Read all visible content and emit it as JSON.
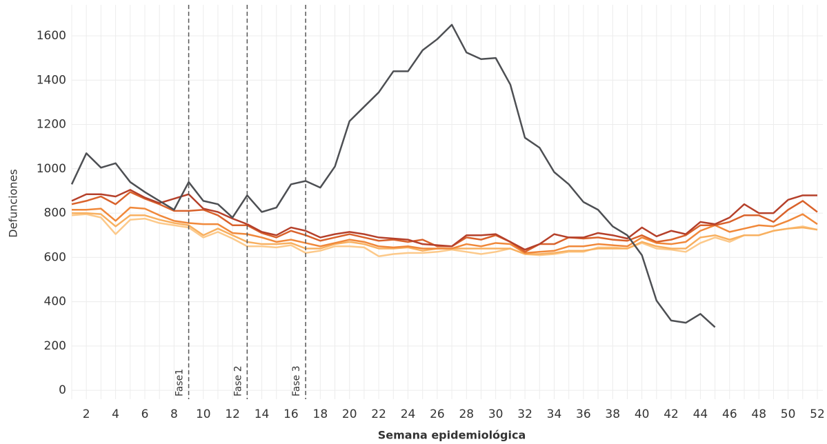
{
  "chart_data": {
    "type": "line",
    "x_label": "Semana epidemiológica",
    "y_label": "Defunciones",
    "x": [
      1,
      2,
      3,
      4,
      5,
      6,
      7,
      8,
      9,
      10,
      11,
      12,
      13,
      14,
      15,
      16,
      17,
      18,
      19,
      20,
      21,
      22,
      23,
      24,
      25,
      26,
      27,
      28,
      29,
      30,
      31,
      32,
      33,
      34,
      35,
      36,
      37,
      38,
      39,
      40,
      41,
      42,
      43,
      44,
      45,
      46,
      47,
      48,
      49,
      50,
      51,
      52
    ],
    "xlim": [
      1,
      52
    ],
    "xticks": [
      2,
      4,
      6,
      8,
      10,
      12,
      14,
      16,
      18,
      20,
      22,
      24,
      26,
      28,
      30,
      32,
      34,
      36,
      38,
      40,
      42,
      44,
      46,
      48,
      50,
      52
    ],
    "ylim": [
      -40,
      1740
    ],
    "yticks": [
      0,
      200,
      400,
      600,
      800,
      1000,
      1200,
      1400,
      1600
    ],
    "grid": true,
    "series": [
      {
        "color": "#fcc98a",
        "values": [
          790,
          795,
          780,
          705,
          770,
          775,
          755,
          745,
          735,
          690,
          715,
          685,
          650,
          650,
          645,
          655,
          620,
          630,
          650,
          650,
          645,
          605,
          615,
          620,
          620,
          625,
          635,
          625,
          615,
          625,
          640,
          615,
          610,
          615,
          625,
          625,
          645,
          645,
          640,
          665,
          640,
          635,
          625,
          665,
          690,
          670,
          700,
          700,
          720,
          730,
          740,
          725
        ]
      },
      {
        "color": "#f8b060",
        "values": [
          800,
          800,
          795,
          740,
          790,
          790,
          770,
          755,
          745,
          700,
          730,
          700,
          670,
          660,
          660,
          665,
          640,
          640,
          660,
          670,
          660,
          640,
          640,
          645,
          630,
          640,
          640,
          640,
          640,
          640,
          640,
          615,
          615,
          620,
          630,
          630,
          640,
          640,
          640,
          670,
          650,
          640,
          640,
          690,
          700,
          680,
          700,
          700,
          720,
          730,
          735,
          725
        ]
      },
      {
        "color": "#f0883a",
        "values": [
          815,
          815,
          820,
          765,
          825,
          820,
          790,
          765,
          755,
          750,
          750,
          710,
          705,
          690,
          670,
          680,
          665,
          650,
          665,
          680,
          670,
          650,
          645,
          650,
          640,
          640,
          640,
          660,
          650,
          665,
          660,
          620,
          625,
          630,
          650,
          650,
          660,
          655,
          650,
          690,
          665,
          660,
          670,
          720,
          745,
          715,
          730,
          745,
          740,
          765,
          795,
          750
        ]
      },
      {
        "color": "#d9622b",
        "values": [
          840,
          855,
          875,
          840,
          895,
          865,
          840,
          810,
          810,
          815,
          790,
          745,
          745,
          710,
          690,
          720,
          700,
          675,
          690,
          705,
          690,
          675,
          680,
          670,
          680,
          650,
          650,
          690,
          680,
          700,
          670,
          625,
          660,
          660,
          690,
          685,
          690,
          680,
          675,
          700,
          670,
          680,
          700,
          745,
          745,
          760,
          790,
          790,
          760,
          815,
          855,
          805
        ]
      },
      {
        "color": "#b5402a",
        "values": [
          855,
          885,
          885,
          875,
          905,
          870,
          845,
          865,
          885,
          820,
          805,
          775,
          750,
          715,
          700,
          735,
          720,
          690,
          705,
          715,
          705,
          690,
          685,
          680,
          660,
          655,
          650,
          700,
          700,
          705,
          670,
          635,
          660,
          705,
          690,
          690,
          710,
          700,
          685,
          735,
          695,
          720,
          705,
          760,
          750,
          780,
          840,
          800,
          800,
          860,
          880,
          880
        ]
      },
      {
        "color": "#4d4f53",
        "values": [
          930,
          1070,
          1005,
          1025,
          940,
          895,
          855,
          815,
          940,
          855,
          840,
          780,
          880,
          805,
          825,
          930,
          945,
          915,
          1010,
          1215,
          1280,
          1345,
          1440,
          1440,
          1535,
          1585,
          1650,
          1525,
          1495,
          1500,
          1380,
          1140,
          1095,
          985,
          930,
          850,
          815,
          740,
          700,
          610,
          405,
          315,
          305,
          345,
          285,
          null,
          null,
          null,
          null,
          null,
          null,
          null
        ]
      }
    ],
    "annotations": [
      {
        "x": 9,
        "label": "Fase1"
      },
      {
        "x": 13,
        "label": "Fase 2"
      },
      {
        "x": 17,
        "label": "Fase 3"
      }
    ]
  }
}
